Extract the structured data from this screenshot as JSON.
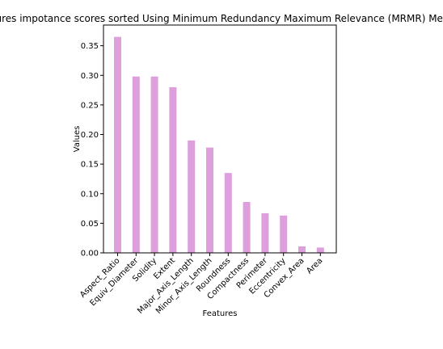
{
  "chart_data": {
    "type": "bar",
    "title": "Features impotance scores sorted Using Minimum Redundancy Maximum Relevance (MRMR) Method",
    "xlabel": "Features",
    "ylabel": "Values",
    "categories": [
      "Aspect_Ratio",
      "Equiv_Diameter",
      "Solidity",
      "Extent",
      "Major_Axis_Length",
      "Minor_Axis_Length",
      "Roundness",
      "Compactness",
      "Perimeter",
      "Eccentricity",
      "Convex_Area",
      "Area"
    ],
    "values": [
      0.365,
      0.298,
      0.298,
      0.28,
      0.19,
      0.178,
      0.135,
      0.086,
      0.067,
      0.063,
      0.011,
      0.009
    ],
    "ylim": [
      0,
      0.385
    ],
    "yticks": [
      0.0,
      0.05,
      0.1,
      0.15,
      0.2,
      0.25,
      0.3,
      0.35
    ],
    "ytick_labels": [
      "0.00",
      "0.05",
      "0.10",
      "0.15",
      "0.20",
      "0.25",
      "0.30",
      "0.35"
    ],
    "bar_color": "#dda0dd",
    "grid": false,
    "legend": "none"
  }
}
